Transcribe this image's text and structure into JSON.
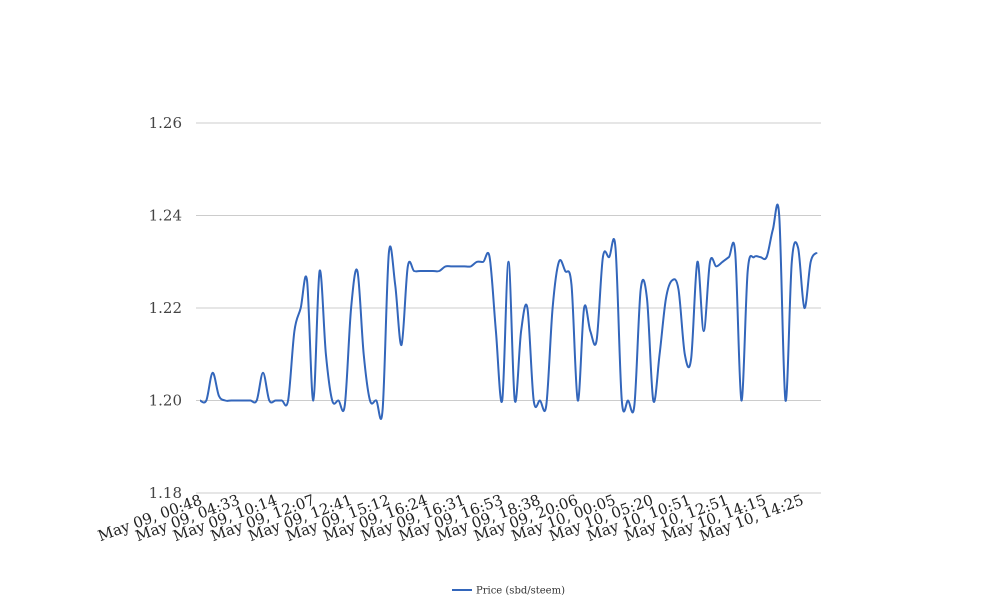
{
  "chart_data": {
    "type": "line",
    "title": "",
    "xlabel": "",
    "ylabel": "",
    "ylim": [
      1.18,
      1.26
    ],
    "yticks": [
      "1.18",
      "1.20",
      "1.22",
      "1.24",
      "1.26"
    ],
    "xtick_labels": [
      "May 09, 00:48",
      "May 09, 04:33",
      "May 09, 10:14",
      "May 09, 12:07",
      "May 09, 12:41",
      "May 09, 15:12",
      "May 09, 16:24",
      "May 09, 16:31",
      "May 09, 16:53",
      "May 09, 18:38",
      "May 09, 20:06",
      "May 10, 00:05",
      "May 10, 05:20",
      "May 10, 10:51",
      "May 10, 12:51",
      "May 10, 14:15",
      "May 10, 14:25"
    ],
    "grid": true,
    "legend_position": "bottom-center",
    "series": [
      {
        "name": "Price (sbd/steem)",
        "color": "#3366bb",
        "values": [
          1.2,
          1.2,
          1.206,
          1.201,
          1.2,
          1.2,
          1.2,
          1.2,
          1.2,
          1.2,
          1.206,
          1.2,
          1.2,
          1.2,
          1.2,
          1.215,
          1.22,
          1.226,
          1.2,
          1.228,
          1.21,
          1.2,
          1.2,
          1.199,
          1.22,
          1.228,
          1.21,
          1.2,
          1.2,
          1.198,
          1.232,
          1.225,
          1.212,
          1.229,
          1.228,
          1.228,
          1.228,
          1.228,
          1.228,
          1.229,
          1.229,
          1.229,
          1.229,
          1.229,
          1.23,
          1.23,
          1.231,
          1.215,
          1.2,
          1.23,
          1.2,
          1.215,
          1.22,
          1.2,
          1.2,
          1.199,
          1.22,
          1.23,
          1.228,
          1.225,
          1.2,
          1.22,
          1.215,
          1.213,
          1.231,
          1.231,
          1.233,
          1.2,
          1.2,
          1.199,
          1.224,
          1.222,
          1.2,
          1.21,
          1.222,
          1.226,
          1.224,
          1.21,
          1.209,
          1.23,
          1.215,
          1.23,
          1.229,
          1.23,
          1.231,
          1.232,
          1.2,
          1.228,
          1.231,
          1.231,
          1.231,
          1.237,
          1.24,
          1.2,
          1.23,
          1.233,
          1.22,
          1.23,
          1.232
        ]
      }
    ]
  }
}
